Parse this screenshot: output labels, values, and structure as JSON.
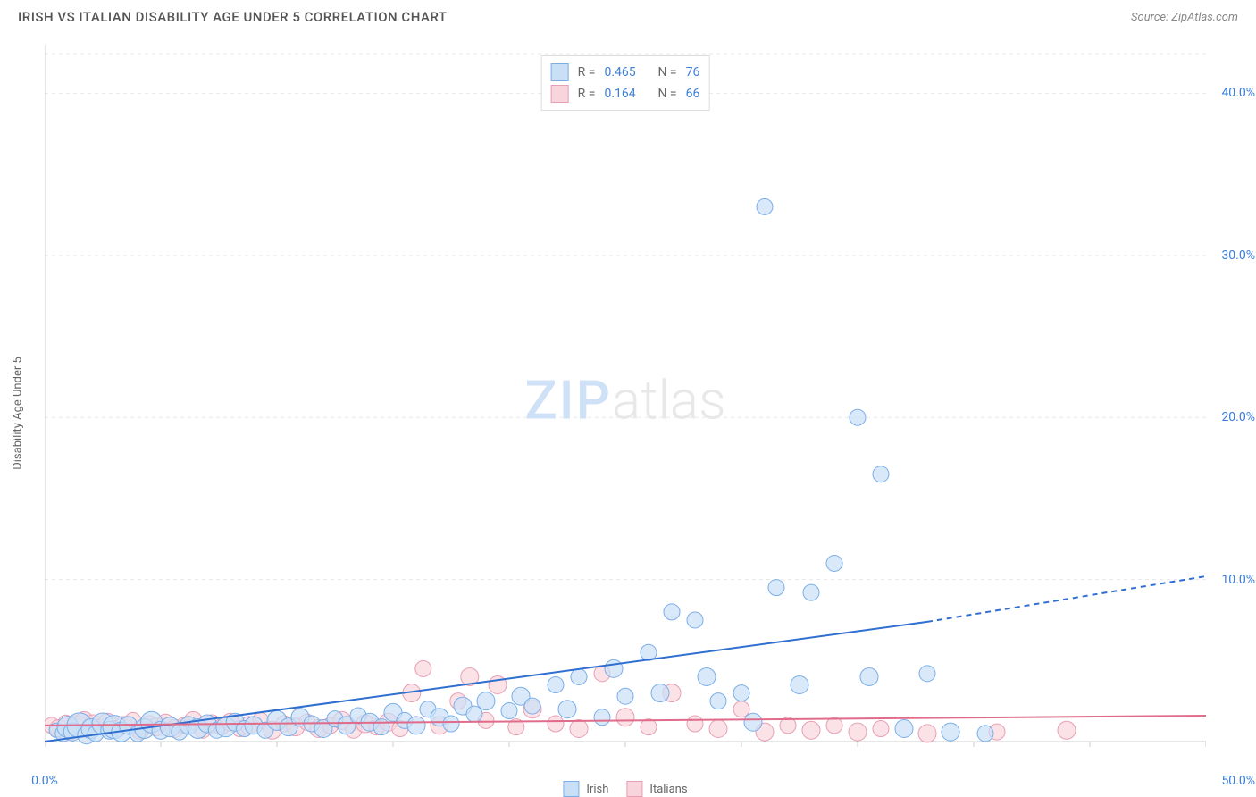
{
  "header": {
    "title": "IRISH VS ITALIAN DISABILITY AGE UNDER 5 CORRELATION CHART",
    "source": "Source: ZipAtlas.com"
  },
  "chart": {
    "type": "scatter",
    "ylabel": "Disability Age Under 5",
    "watermark": {
      "left": "ZIP",
      "right": "atlas"
    },
    "xlim": [
      0,
      50
    ],
    "ylim": [
      0,
      43
    ],
    "xticks": [
      0,
      5,
      10,
      15,
      20,
      25,
      30,
      35,
      40,
      45,
      50
    ],
    "xtick_labels": {
      "0": "0.0%",
      "50": "50.0%"
    },
    "yticks": [
      10,
      20,
      30,
      40
    ],
    "ytick_labels": {
      "10": "10.0%",
      "20": "20.0%",
      "30": "30.0%",
      "40": "40.0%"
    },
    "grid_color": "#e8e8e8",
    "axis_color": "#cccccc",
    "background_color": "#ffffff",
    "series": [
      {
        "name": "Irish",
        "color_fill": "#c9dff6",
        "color_stroke": "#7aaee8",
        "line_color": "#2e6fd0",
        "R": "0.465",
        "N": "76",
        "trend": {
          "x1": 0,
          "y1": -1.5,
          "x2": 50,
          "y2": 10.2,
          "solid_until_x": 38
        },
        "points": [
          [
            0.5,
            0.7,
            8
          ],
          [
            0.8,
            0.5,
            9
          ],
          [
            1.0,
            0.9,
            12
          ],
          [
            1.2,
            0.6,
            10
          ],
          [
            1.5,
            1.0,
            14
          ],
          [
            1.8,
            0.4,
            10
          ],
          [
            2.0,
            0.8,
            11
          ],
          [
            2.2,
            0.5,
            9
          ],
          [
            2.5,
            1.1,
            12
          ],
          [
            2.8,
            0.7,
            10
          ],
          [
            3.0,
            0.9,
            13
          ],
          [
            3.3,
            0.6,
            11
          ],
          [
            3.6,
            1.0,
            10
          ],
          [
            4.0,
            0.5,
            9
          ],
          [
            4.3,
            0.8,
            11
          ],
          [
            4.6,
            1.2,
            12
          ],
          [
            5.0,
            0.7,
            10
          ],
          [
            5.4,
            0.9,
            11
          ],
          [
            5.8,
            0.6,
            9
          ],
          [
            6.2,
            1.0,
            10
          ],
          [
            6.6,
            0.8,
            11
          ],
          [
            7.0,
            1.1,
            10
          ],
          [
            7.4,
            0.7,
            9
          ],
          [
            7.8,
            0.9,
            11
          ],
          [
            8.2,
            1.2,
            10
          ],
          [
            8.6,
            0.8,
            9
          ],
          [
            9.0,
            1.0,
            10
          ],
          [
            9.5,
            0.7,
            9
          ],
          [
            10.0,
            1.3,
            11
          ],
          [
            10.5,
            0.9,
            10
          ],
          [
            11.0,
            1.5,
            10
          ],
          [
            11.5,
            1.1,
            9
          ],
          [
            12.0,
            0.8,
            10
          ],
          [
            12.5,
            1.4,
            9
          ],
          [
            13.0,
            1.0,
            10
          ],
          [
            13.5,
            1.6,
            9
          ],
          [
            14.0,
            1.2,
            10
          ],
          [
            14.5,
            0.9,
            9
          ],
          [
            15.0,
            1.8,
            10
          ],
          [
            15.5,
            1.3,
            9
          ],
          [
            16.0,
            1.0,
            10
          ],
          [
            16.5,
            2.0,
            9
          ],
          [
            17.0,
            1.5,
            10
          ],
          [
            17.5,
            1.1,
            9
          ],
          [
            18.0,
            2.2,
            10
          ],
          [
            18.5,
            1.7,
            9
          ],
          [
            19.0,
            2.5,
            10
          ],
          [
            20.0,
            1.9,
            9
          ],
          [
            20.5,
            2.8,
            10
          ],
          [
            21.0,
            2.2,
            9
          ],
          [
            22.0,
            3.5,
            9
          ],
          [
            22.5,
            2.0,
            10
          ],
          [
            23.0,
            4.0,
            9
          ],
          [
            24.0,
            1.5,
            9
          ],
          [
            24.5,
            4.5,
            10
          ],
          [
            25.0,
            2.8,
            9
          ],
          [
            26.0,
            5.5,
            9
          ],
          [
            26.5,
            3.0,
            10
          ],
          [
            27.0,
            8.0,
            9
          ],
          [
            28.0,
            7.5,
            9
          ],
          [
            28.5,
            4.0,
            10
          ],
          [
            29.0,
            2.5,
            9
          ],
          [
            30.0,
            3.0,
            9
          ],
          [
            30.5,
            1.2,
            10
          ],
          [
            31.0,
            33.0,
            9
          ],
          [
            31.5,
            9.5,
            9
          ],
          [
            32.5,
            3.5,
            10
          ],
          [
            33.0,
            9.2,
            9
          ],
          [
            34.0,
            11.0,
            9
          ],
          [
            35.0,
            20.0,
            9
          ],
          [
            35.5,
            4.0,
            10
          ],
          [
            36.0,
            16.5,
            9
          ],
          [
            37.0,
            0.8,
            10
          ],
          [
            38.0,
            4.2,
            9
          ],
          [
            39.0,
            0.6,
            10
          ],
          [
            40.5,
            0.5,
            9
          ]
        ]
      },
      {
        "name": "Italians",
        "color_fill": "#f8d5dd",
        "color_stroke": "#e89fb3",
        "line_color": "#e06b8a",
        "R": "0.164",
        "N": "66",
        "trend": {
          "x1": 0,
          "y1": 1.0,
          "x2": 50,
          "y2": 1.6,
          "solid_until_x": 50
        },
        "points": [
          [
            0.3,
            1.0,
            9
          ],
          [
            0.6,
            0.8,
            10
          ],
          [
            0.9,
            1.2,
            8
          ],
          [
            1.1,
            0.6,
            9
          ],
          [
            1.4,
            1.0,
            11
          ],
          [
            1.7,
            1.3,
            10
          ],
          [
            1.9,
            0.7,
            9
          ],
          [
            2.1,
            1.1,
            10
          ],
          [
            2.4,
            0.9,
            9
          ],
          [
            2.7,
            1.2,
            10
          ],
          [
            3.1,
            0.8,
            9
          ],
          [
            3.4,
            1.0,
            10
          ],
          [
            3.8,
            1.3,
            9
          ],
          [
            4.1,
            0.7,
            10
          ],
          [
            4.5,
            1.1,
            9
          ],
          [
            4.8,
            0.9,
            10
          ],
          [
            5.2,
            1.2,
            9
          ],
          [
            5.6,
            0.8,
            10
          ],
          [
            6.0,
            1.0,
            9
          ],
          [
            6.4,
            1.3,
            10
          ],
          [
            6.8,
            0.7,
            9
          ],
          [
            7.2,
            1.1,
            10
          ],
          [
            7.6,
            0.9,
            9
          ],
          [
            8.0,
            1.2,
            10
          ],
          [
            8.4,
            0.8,
            9
          ],
          [
            8.8,
            1.0,
            10
          ],
          [
            9.3,
            1.3,
            9
          ],
          [
            9.8,
            0.7,
            10
          ],
          [
            10.3,
            1.1,
            9
          ],
          [
            10.8,
            0.9,
            10
          ],
          [
            11.3,
            1.2,
            9
          ],
          [
            11.8,
            0.8,
            10
          ],
          [
            12.3,
            1.0,
            9
          ],
          [
            12.8,
            1.3,
            10
          ],
          [
            13.3,
            0.7,
            9
          ],
          [
            13.8,
            1.1,
            10
          ],
          [
            14.3,
            0.9,
            9
          ],
          [
            14.8,
            1.2,
            10
          ],
          [
            15.3,
            0.8,
            9
          ],
          [
            15.8,
            3.0,
            10
          ],
          [
            16.3,
            4.5,
            9
          ],
          [
            17.0,
            1.0,
            10
          ],
          [
            17.8,
            2.5,
            9
          ],
          [
            18.3,
            4.0,
            10
          ],
          [
            19.0,
            1.3,
            9
          ],
          [
            19.5,
            3.5,
            10
          ],
          [
            20.3,
            0.9,
            9
          ],
          [
            21.0,
            2.0,
            10
          ],
          [
            22.0,
            1.1,
            9
          ],
          [
            23.0,
            0.8,
            10
          ],
          [
            24.0,
            4.2,
            9
          ],
          [
            25.0,
            1.5,
            10
          ],
          [
            26.0,
            0.9,
            9
          ],
          [
            27.0,
            3.0,
            10
          ],
          [
            28.0,
            1.1,
            9
          ],
          [
            29.0,
            0.8,
            10
          ],
          [
            30.0,
            2.0,
            9
          ],
          [
            31.0,
            0.6,
            10
          ],
          [
            32.0,
            1.0,
            9
          ],
          [
            33.0,
            0.7,
            10
          ],
          [
            34.0,
            1.0,
            9
          ],
          [
            35.0,
            0.6,
            10
          ],
          [
            36.0,
            0.8,
            9
          ],
          [
            38.0,
            0.5,
            10
          ],
          [
            41.0,
            0.6,
            9
          ],
          [
            44.0,
            0.7,
            10
          ]
        ]
      }
    ],
    "legend_bottom": [
      {
        "label": "Irish",
        "fill": "#c9dff6",
        "stroke": "#7aaee8"
      },
      {
        "label": "Italians",
        "fill": "#f8d5dd",
        "stroke": "#e89fb3"
      }
    ],
    "legend_top_label_color": "#3b7dd8",
    "legend_top_text_color": "#666"
  }
}
